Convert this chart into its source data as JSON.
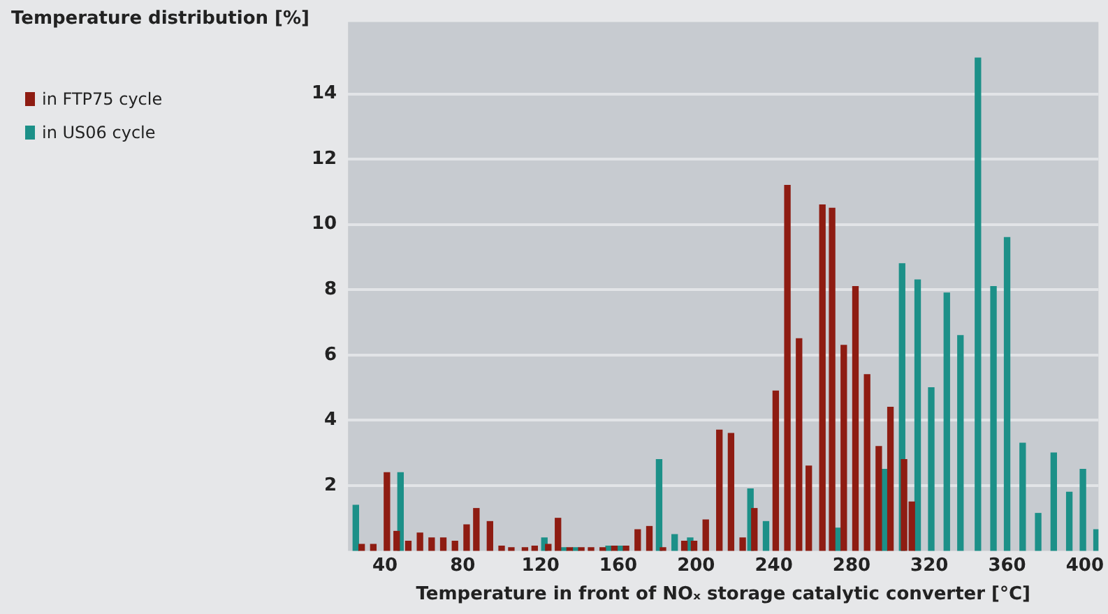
{
  "chart_data": {
    "type": "bar",
    "ylabel": "Temperature distribution [%]",
    "xlabel": "Temperature in front of NOₓ storage catalytic converter [°C]",
    "xlim": [
      21,
      407
    ],
    "xticks": [
      40,
      80,
      120,
      160,
      200,
      240,
      280,
      320,
      360,
      400
    ],
    "ylim": [
      0,
      16.2
    ],
    "yticks": [
      2,
      4,
      6,
      8,
      10,
      12,
      14
    ],
    "grid": "y",
    "legend": "top left",
    "series": [
      {
        "name": "in FTP75 cycle",
        "color": "#8e1c12",
        "x": [
          28,
          34,
          41,
          46,
          52,
          58,
          64,
          70,
          76,
          82,
          87,
          94,
          100,
          105,
          112,
          117,
          124,
          129,
          135,
          141,
          146,
          152,
          158,
          164,
          170,
          176,
          183,
          194,
          199,
          205,
          212,
          218,
          224,
          230,
          241,
          247,
          253,
          258,
          265,
          270,
          276,
          282,
          288,
          294,
          300,
          307,
          311
        ],
        "values": [
          0.2,
          0.2,
          2.4,
          0.6,
          0.3,
          0.55,
          0.4,
          0.4,
          0.3,
          0.8,
          1.3,
          0.9,
          0.15,
          0.1,
          0.1,
          0.15,
          0.2,
          1.0,
          0.1,
          0.1,
          0.1,
          0.1,
          0.15,
          0.15,
          0.65,
          0.75,
          0.1,
          0.3,
          0.3,
          0.95,
          3.7,
          3.6,
          0.4,
          1.3,
          4.9,
          11.2,
          6.5,
          2.6,
          10.6,
          10.5,
          6.3,
          8.1,
          5.4,
          3.2,
          4.4,
          2.8,
          1.5
        ]
      },
      {
        "name": "in US06 cycle",
        "color": "#1c9088",
        "x": [
          25,
          48,
          122,
          132,
          138,
          155,
          161,
          181,
          189,
          197,
          228,
          236,
          273,
          297,
          306,
          314,
          321,
          329,
          336,
          345,
          353,
          360,
          368,
          376,
          384,
          392,
          399,
          406
        ],
        "values": [
          1.4,
          2.4,
          0.4,
          0.1,
          0.1,
          0.15,
          0.15,
          2.8,
          0.5,
          0.4,
          1.9,
          0.9,
          0.7,
          2.5,
          8.8,
          8.3,
          5.0,
          7.9,
          6.6,
          15.1,
          8.1,
          9.6,
          3.3,
          1.15,
          3.0,
          1.8,
          2.5,
          0.65
        ]
      }
    ]
  }
}
